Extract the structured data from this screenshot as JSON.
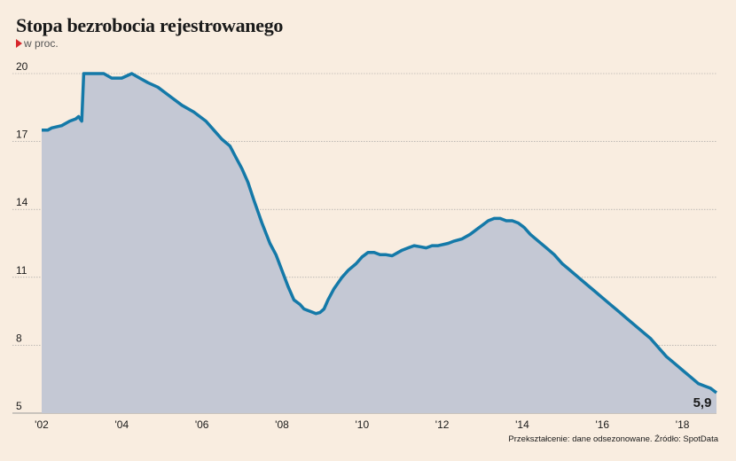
{
  "chart_data": {
    "type": "area",
    "title": "Stopa bezrobocia rejestrowanego",
    "subtitle": "w proc.",
    "source": "Przekształcenie: dane odsezonowane. Źródło: SpotData",
    "y_ticks": [
      5,
      8,
      11,
      14,
      17,
      20
    ],
    "y_tick_labels": [
      "5",
      "8",
      "11",
      "14",
      "17",
      "20"
    ],
    "x_ticks": [
      2002,
      2004,
      2006,
      2008,
      2010,
      2012,
      2014,
      2016,
      2018
    ],
    "x_tick_labels": [
      "'02",
      "'04",
      "'06",
      "'08",
      "'10",
      "'12",
      "'14",
      "'16",
      "'18"
    ],
    "xlim": [
      2002,
      2018.85
    ],
    "ylim": [
      5,
      20
    ],
    "grid": true,
    "end_label": "5,9",
    "colors": {
      "line": "#1479a8",
      "fill": "#c4c8d4",
      "grid": "#999999",
      "background": "#f9ede0"
    },
    "x": [
      2002.0,
      2002.15,
      2002.25,
      2002.5,
      2002.7,
      2002.85,
      2002.92,
      2003.0,
      2003.05,
      2003.4,
      2003.55,
      2003.75,
      2003.85,
      2004.0,
      2004.25,
      2004.45,
      2004.65,
      2004.9,
      2005.2,
      2005.5,
      2005.8,
      2005.95,
      2006.1,
      2006.3,
      2006.5,
      2006.7,
      2006.85,
      2007.0,
      2007.15,
      2007.3,
      2007.5,
      2007.7,
      2007.85,
      2008.0,
      2008.15,
      2008.3,
      2008.45,
      2008.55,
      2008.7,
      2008.85,
      2008.95,
      2009.05,
      2009.15,
      2009.3,
      2009.5,
      2009.65,
      2009.85,
      2010.0,
      2010.15,
      2010.3,
      2010.45,
      2010.6,
      2010.75,
      2010.9,
      2011.0,
      2011.15,
      2011.3,
      2011.45,
      2011.6,
      2011.75,
      2011.9,
      2012.15,
      2012.3,
      2012.5,
      2012.7,
      2012.85,
      2013.0,
      2013.15,
      2013.3,
      2013.45,
      2013.6,
      2013.75,
      2013.9,
      2014.05,
      2014.2,
      2014.4,
      2014.6,
      2014.8,
      2015.0,
      2015.2,
      2015.4,
      2015.6,
      2015.8,
      2016.0,
      2016.2,
      2016.4,
      2016.6,
      2016.8,
      2017.0,
      2017.2,
      2017.4,
      2017.6,
      2017.8,
      2018.0,
      2018.2,
      2018.4,
      2018.55,
      2018.7,
      2018.85
    ],
    "values": [
      17.5,
      17.5,
      17.6,
      17.7,
      17.9,
      18.0,
      18.1,
      17.9,
      20.0,
      20.0,
      20.0,
      19.8,
      19.8,
      19.8,
      20.0,
      19.8,
      19.6,
      19.4,
      19.0,
      18.6,
      18.3,
      18.1,
      17.9,
      17.5,
      17.1,
      16.8,
      16.3,
      15.8,
      15.2,
      14.4,
      13.4,
      12.5,
      12.0,
      11.3,
      10.6,
      10.0,
      9.8,
      9.6,
      9.5,
      9.4,
      9.45,
      9.6,
      10.0,
      10.5,
      11.0,
      11.3,
      11.6,
      11.9,
      12.1,
      12.1,
      12.0,
      12.0,
      11.95,
      12.1,
      12.2,
      12.3,
      12.4,
      12.35,
      12.3,
      12.4,
      12.4,
      12.5,
      12.6,
      12.7,
      12.9,
      13.1,
      13.3,
      13.5,
      13.6,
      13.6,
      13.5,
      13.5,
      13.4,
      13.2,
      12.9,
      12.6,
      12.3,
      12.0,
      11.6,
      11.3,
      11.0,
      10.7,
      10.4,
      10.1,
      9.8,
      9.5,
      9.2,
      8.9,
      8.6,
      8.3,
      7.9,
      7.5,
      7.2,
      6.9,
      6.6,
      6.3,
      6.2,
      6.1,
      5.9
    ]
  }
}
